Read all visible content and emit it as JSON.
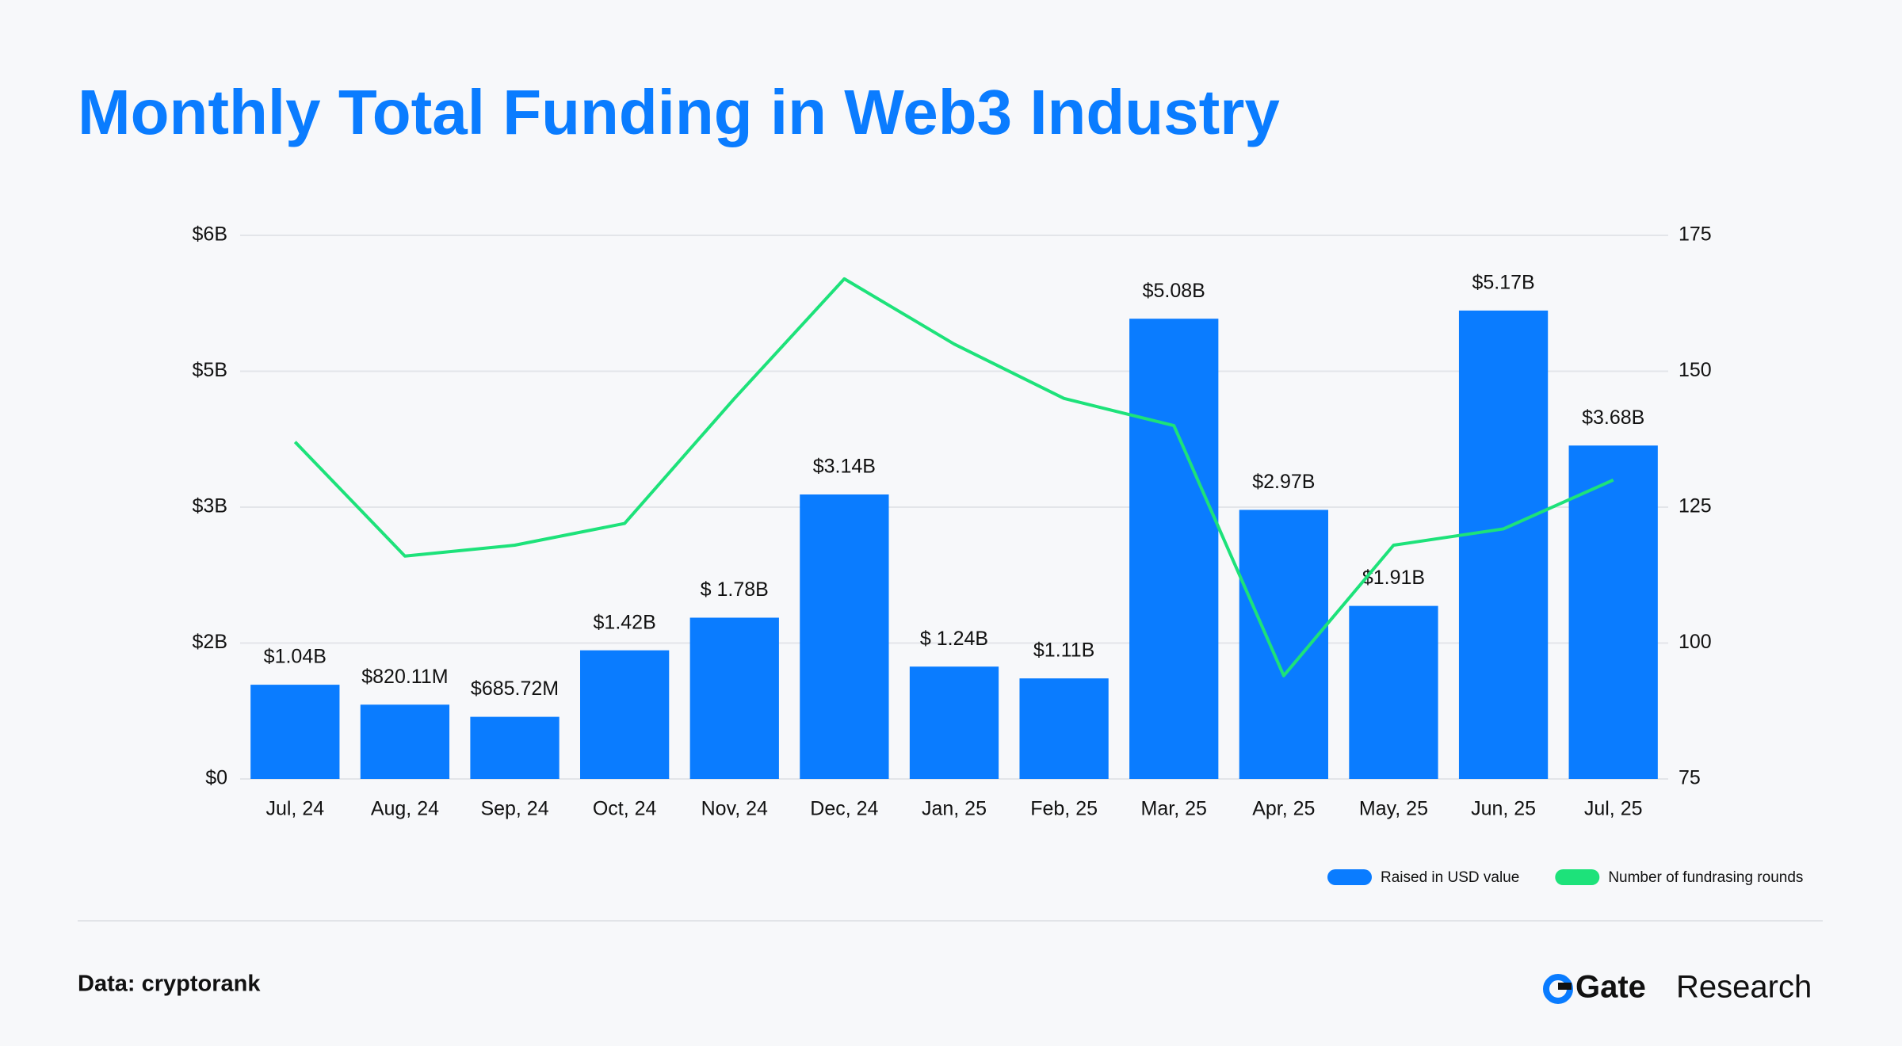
{
  "chart_data": {
    "type": "bar",
    "title": "Monthly Total Funding in Web3 Industry",
    "categories": [
      "Jul, 24",
      "Aug, 24",
      "Sep, 24",
      "Oct, 24",
      "Nov, 24",
      "Dec, 24",
      "Jan, 25",
      "Feb, 25",
      "Mar, 25",
      "Apr, 25",
      "May, 25",
      "Jun, 25",
      "Jul, 25"
    ],
    "series": [
      {
        "name": "Raised in USD value",
        "type": "bar",
        "color": "#0a7cff",
        "values": [
          1.04,
          0.82011,
          0.68572,
          1.42,
          1.78,
          3.14,
          1.24,
          1.11,
          5.08,
          2.97,
          1.91,
          5.17,
          3.68
        ],
        "value_labels": [
          "$1.04B",
          "$820.11M",
          "$685.72M",
          "$1.42B",
          "$ 1.78B",
          "$3.14B",
          "$ 1.24B",
          "$1.11B",
          "$5.08B",
          "$2.97B",
          "$1.91B",
          "$5.17B",
          "$3.68B"
        ]
      },
      {
        "name": "Number of fundrasing rounds",
        "type": "line",
        "axis": "y2",
        "color": "#1de27a",
        "values": [
          137,
          116,
          118,
          122,
          145,
          167,
          155,
          145,
          140,
          94,
          118,
          121,
          130
        ]
      }
    ],
    "ylim": [
      0,
      6
    ],
    "yticks": [
      {
        "value": 0,
        "label": "$0"
      },
      {
        "value": 1.5,
        "label": "$2B"
      },
      {
        "value": 3,
        "label": "$3B"
      },
      {
        "value": 4.5,
        "label": "$5B"
      },
      {
        "value": 6,
        "label": "$6B"
      }
    ],
    "y2lim": [
      75,
      175
    ],
    "y2ticks": [
      75,
      100,
      125,
      150,
      175
    ],
    "grid": true,
    "legend": "bottom-right",
    "source": "Data: cryptorank",
    "brand": {
      "name": "Gate",
      "suffix": "Research"
    }
  }
}
